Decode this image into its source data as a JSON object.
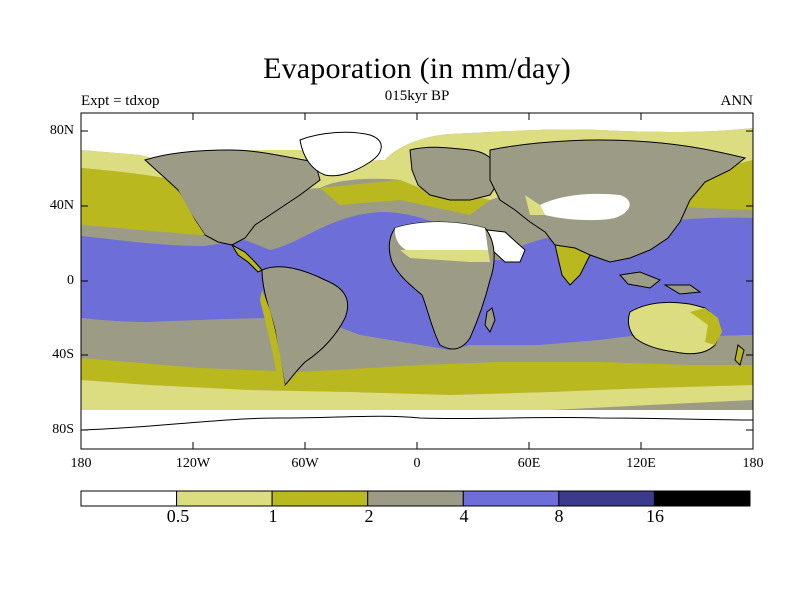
{
  "title": "Evaporation (in mm/day)",
  "subtitle": "015kyr BP",
  "experiment_label": "Expt = tdxop",
  "season_label": "ANN",
  "map": {
    "projection": "cylindrical-equidistant",
    "lon_range": [
      -180,
      180
    ],
    "lat_range": [
      -90,
      90
    ],
    "x_ticks": [
      "180",
      "120W",
      "60W",
      "0",
      "60E",
      "120E",
      "180"
    ],
    "y_ticks": [
      "80N",
      "40N",
      "0",
      "40S",
      "80S"
    ]
  },
  "colorbar": {
    "levels": [
      "0.5",
      "1",
      "2",
      "4",
      "8",
      "16"
    ],
    "colors": [
      "#ffffff",
      "#dcdc80",
      "#b9b91f",
      "#9b9b86",
      "#6e6ed8",
      "#3b3b8c",
      "#000000"
    ]
  },
  "chart_data": {
    "type": "heatmap",
    "title": "Evaporation (in mm/day)",
    "subtitle": "015kyr BP",
    "xlabel": "",
    "ylabel": "",
    "x_ticks": [
      "180",
      "120W",
      "60W",
      "0",
      "60E",
      "120E",
      "180"
    ],
    "y_ticks": [
      "80N",
      "40N",
      "0",
      "40S",
      "80S"
    ],
    "contour_levels": [
      0.5,
      1,
      2,
      4,
      8,
      16
    ],
    "zonal_pattern": [
      {
        "band": "80N-90N",
        "range": "<0.5"
      },
      {
        "band": "60N-80N",
        "range": "0.5-1"
      },
      {
        "band": "40N-60N",
        "range": "1-4"
      },
      {
        "band": "25N-40N (ocean)",
        "range": "2-4"
      },
      {
        "band": "20S-25N (ocean)",
        "range": "4-8"
      },
      {
        "band": "subtropical deserts (land)",
        "range": "<0.5"
      },
      {
        "band": "tropical land",
        "range": "2-4"
      },
      {
        "band": "40S-55S",
        "range": "1-4"
      },
      {
        "band": "55S-70S",
        "range": "0.5-2"
      },
      {
        "band": "Antarctica",
        "range": "<0.5"
      }
    ]
  }
}
